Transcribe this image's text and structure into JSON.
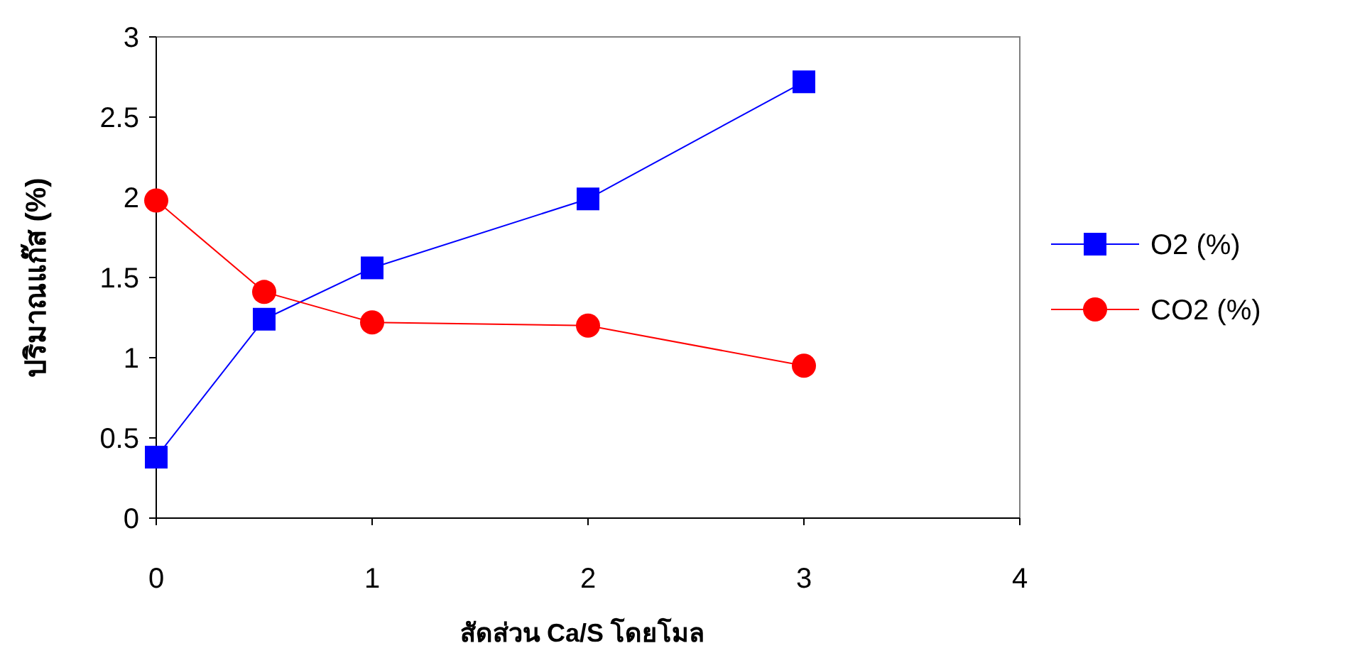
{
  "chart_data": {
    "type": "line",
    "xlabel": "สัดส่วน Ca/S โดยโมล",
    "ylabel": "ปริมาณแก๊ส (%)",
    "x": [
      0,
      0.5,
      1,
      2,
      3
    ],
    "series": [
      {
        "name": "O2 (%)",
        "color": "#0000ff",
        "marker": "square",
        "values": [
          0.38,
          1.24,
          1.56,
          1.99,
          2.72
        ]
      },
      {
        "name": "CO2 (%)",
        "color": "#ff0000",
        "marker": "circle",
        "values": [
          1.98,
          1.41,
          1.22,
          1.2,
          0.95
        ]
      }
    ],
    "xlim": [
      0,
      4
    ],
    "xticks": [
      0,
      1,
      2,
      3,
      4
    ],
    "ylim": [
      0,
      3
    ],
    "yticks": [
      0,
      0.5,
      1,
      1.5,
      2,
      2.5,
      3
    ],
    "grid": false,
    "legend": "right",
    "line_style": "solid"
  }
}
